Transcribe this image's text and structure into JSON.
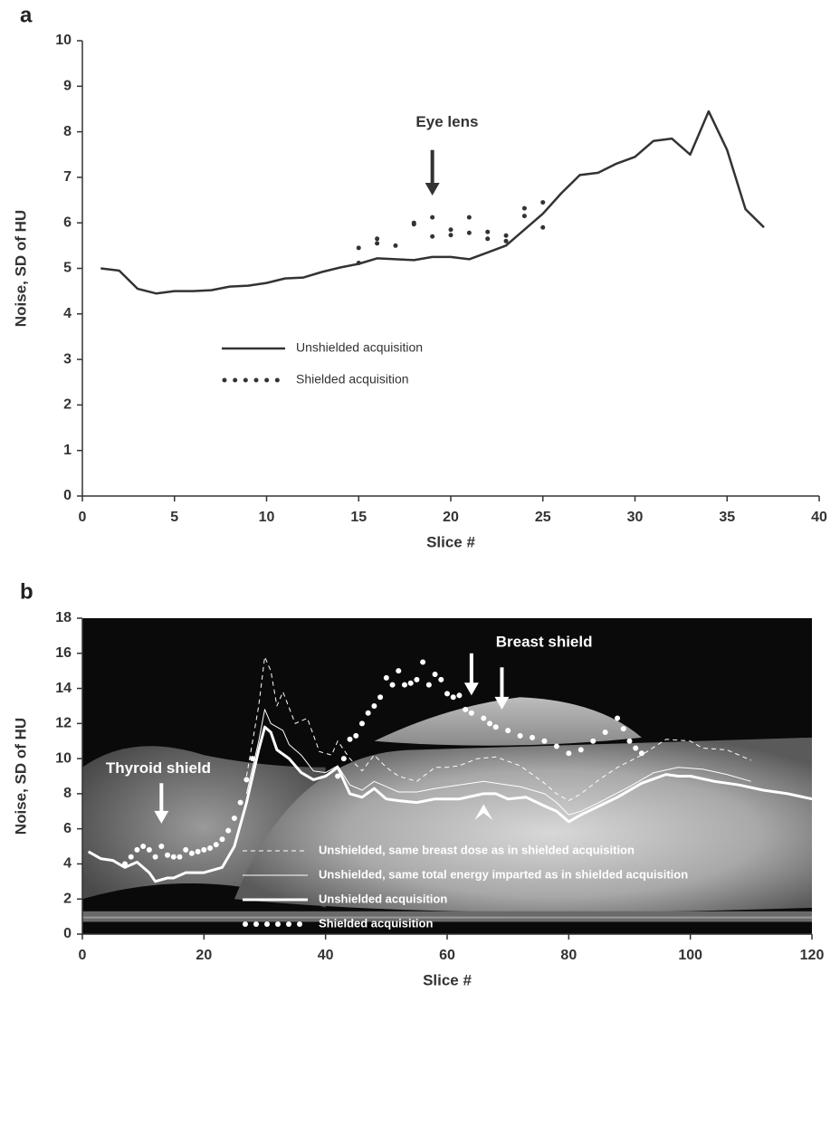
{
  "chart_data": [
    {
      "type": "line",
      "label": "a",
      "xlabel": "Slice #",
      "ylabel": "Noise, SD of HU",
      "xlim": [
        0,
        40
      ],
      "xticks": [
        0,
        5,
        10,
        15,
        20,
        25,
        30,
        35,
        40
      ],
      "ylim": [
        0,
        10
      ],
      "yticks": [
        0,
        1,
        2,
        3,
        4,
        5,
        6,
        7,
        8,
        9,
        10
      ],
      "annotations": [
        "Eye lens"
      ],
      "series": [
        {
          "name": "Unshielded acquisition",
          "color": "#333333",
          "style": "solid",
          "width": 2.5,
          "x": [
            1,
            2,
            3,
            4,
            5,
            6,
            7,
            8,
            9,
            10,
            11,
            12,
            13,
            14,
            15,
            16,
            17,
            18,
            19,
            20,
            21,
            22,
            23,
            24,
            25,
            26,
            27,
            28,
            29,
            30,
            31,
            32,
            33,
            34,
            35,
            36,
            37
          ],
          "values": [
            5.0,
            4.95,
            4.55,
            4.45,
            4.5,
            4.5,
            4.52,
            4.6,
            4.62,
            4.68,
            4.78,
            4.8,
            4.92,
            5.02,
            5.1,
            5.22,
            5.2,
            5.18,
            5.25,
            5.25,
            5.2,
            5.35,
            5.5,
            5.85,
            6.2,
            6.65,
            7.05,
            7.1,
            7.3,
            7.45,
            7.8,
            7.85,
            7.5,
            8.45,
            7.6,
            6.3,
            5.9
          ]
        },
        {
          "name": "Shielded acquisition",
          "color": "#333333",
          "style": "dots",
          "width": 2.5,
          "x": [
            15,
            15,
            16,
            16,
            17,
            18,
            18,
            19,
            19,
            20,
            20,
            21,
            21,
            22,
            22,
            23,
            23,
            24,
            24,
            25,
            25
          ],
          "values": [
            5.45,
            5.12,
            5.65,
            5.55,
            5.5,
            6.0,
            5.97,
            6.12,
            5.7,
            5.85,
            5.73,
            6.12,
            5.78,
            5.8,
            5.65,
            5.72,
            5.6,
            6.32,
            6.15,
            6.45,
            5.9
          ]
        }
      ]
    },
    {
      "type": "line",
      "label": "b",
      "xlabel": "Slice #",
      "ylabel": "Noise, SD of HU",
      "xlim": [
        0,
        120
      ],
      "xticks": [
        0,
        20,
        40,
        60,
        80,
        100,
        120
      ],
      "ylim": [
        0,
        18
      ],
      "yticks": [
        0,
        2,
        4,
        6,
        8,
        10,
        12,
        14,
        16,
        18
      ],
      "annotations": [
        "Thyroid shield",
        "Breast shield"
      ],
      "series": [
        {
          "name": "Unshielded, same breast dose as in shielded acquisition",
          "color": "#ffffff",
          "style": "dashed",
          "width": 1,
          "x": [
            27,
            29,
            30,
            31,
            32,
            33,
            35,
            37,
            39,
            41,
            42,
            44,
            46,
            48,
            50,
            52,
            55,
            58,
            60,
            62,
            65,
            68,
            72,
            76,
            78,
            80,
            82,
            85,
            88,
            92,
            96,
            100,
            102,
            106,
            110
          ],
          "values": [
            9,
            13,
            15.8,
            15,
            13,
            13.8,
            12,
            12.3,
            10.4,
            10.2,
            11.0,
            10,
            9.3,
            10.2,
            9.5,
            9.0,
            8.7,
            9.5,
            9.5,
            9.6,
            10,
            10.1,
            9.6,
            8.6,
            8.0,
            7.6,
            8.0,
            8.8,
            9.5,
            10.2,
            11.1,
            11.0,
            10.6,
            10.5,
            9.9
          ]
        },
        {
          "name": "Unshielded, same total energy imparted as in shielded acquisition",
          "color": "#ffffff",
          "style": "solid",
          "width": 1,
          "x": [
            27,
            29,
            30,
            31,
            33,
            34,
            36,
            38,
            40,
            42,
            44,
            46,
            48,
            50,
            52,
            55,
            58,
            62,
            66,
            68,
            72,
            76,
            78,
            80,
            82,
            85,
            90,
            94,
            98,
            102,
            106,
            110
          ],
          "values": [
            8.0,
            11,
            12.8,
            12.0,
            11.6,
            10.8,
            10.2,
            9.3,
            9.2,
            9.6,
            8.5,
            8.2,
            8.7,
            8.4,
            8.1,
            8.1,
            8.3,
            8.5,
            8.7,
            8.6,
            8.4,
            8.0,
            7.5,
            6.8,
            7.0,
            7.5,
            8.4,
            9.2,
            9.5,
            9.4,
            9.1,
            8.7
          ]
        },
        {
          "name": "Unshielded acquisition",
          "color": "#ffffff",
          "style": "solid",
          "width": 3,
          "x": [
            1,
            3,
            5,
            7,
            9,
            11,
            12,
            14,
            15,
            17,
            20,
            23,
            25,
            27,
            29,
            30,
            31,
            32,
            34,
            36,
            38,
            40,
            42,
            44,
            46,
            48,
            50,
            52,
            55,
            58,
            62,
            66,
            68,
            70,
            73,
            76,
            78,
            80,
            82,
            85,
            88,
            92,
            96,
            98,
            100,
            104,
            108,
            112,
            116,
            120
          ],
          "values": [
            4.7,
            4.3,
            4.2,
            3.8,
            4.1,
            3.5,
            3.0,
            3.2,
            3.2,
            3.5,
            3.5,
            3.8,
            5,
            7.5,
            10.5,
            11.8,
            11.5,
            10.5,
            10,
            9.2,
            8.8,
            9.0,
            9.5,
            8.0,
            7.8,
            8.3,
            7.7,
            7.6,
            7.5,
            7.7,
            7.7,
            8.0,
            8.0,
            7.7,
            7.8,
            7.3,
            7.0,
            6.4,
            6.8,
            7.3,
            7.8,
            8.6,
            9.1,
            9.0,
            9.0,
            8.7,
            8.5,
            8.2,
            8.0,
            7.7
          ]
        },
        {
          "name": "Shielded acquisition",
          "color": "#ffffff",
          "style": "dots",
          "width": 3,
          "x": [
            7,
            8,
            9,
            10,
            11,
            12,
            13,
            14,
            15,
            16,
            17,
            18,
            19,
            20,
            21,
            22,
            23,
            24,
            25,
            26,
            27,
            28,
            42,
            43,
            44,
            45,
            46,
            47,
            48,
            49,
            50,
            51,
            52,
            53,
            54,
            55,
            56,
            57,
            58,
            59,
            60,
            61,
            62,
            63,
            64,
            66,
            67,
            68,
            70,
            72,
            74,
            76,
            78,
            80,
            82,
            84,
            86,
            88,
            89,
            90,
            91,
            92
          ],
          "values": [
            4.0,
            4.4,
            4.8,
            5.0,
            4.8,
            4.4,
            5.0,
            4.5,
            4.4,
            4.4,
            4.8,
            4.6,
            4.7,
            4.8,
            4.9,
            5.1,
            5.4,
            5.9,
            6.6,
            7.5,
            8.8,
            10.0,
            9.0,
            10.0,
            11.1,
            11.3,
            12.0,
            12.6,
            13.0,
            13.5,
            14.6,
            14.2,
            15.0,
            14.2,
            14.3,
            14.5,
            15.5,
            14.2,
            14.8,
            14.5,
            13.7,
            13.5,
            13.6,
            12.8,
            12.6,
            12.3,
            12.0,
            11.8,
            11.6,
            11.3,
            11.2,
            11.0,
            10.7,
            10.3,
            10.5,
            11.0,
            11.5,
            12.3,
            11.7,
            11.0,
            10.6,
            10.3
          ]
        }
      ]
    }
  ]
}
